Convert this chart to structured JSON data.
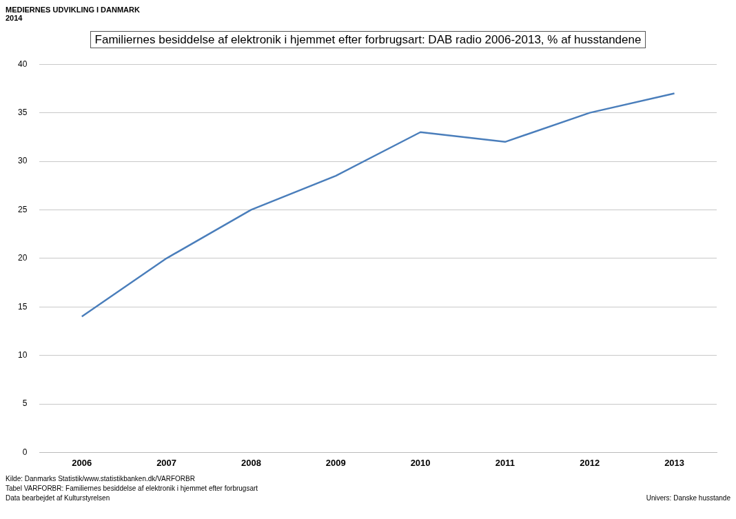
{
  "chart_data": {
    "type": "line",
    "title": "Familiernes besiddelse af elektronik i hjemmet efter forbrugsart: DAB radio 2006-2013, % af husstandene",
    "categories": [
      "2006",
      "2007",
      "2008",
      "2009",
      "2010",
      "2011",
      "2012",
      "2013"
    ],
    "series": [
      {
        "color": "#4a7ebb",
        "values": [
          14,
          20,
          25,
          28.5,
          33,
          32,
          35,
          37
        ]
      }
    ],
    "ylim": [
      0,
      40
    ],
    "yticks": [
      0,
      5,
      10,
      15,
      20,
      25,
      30,
      35,
      40
    ],
    "grid": "y",
    "legend": false,
    "marker": "none",
    "line_style": "solid",
    "annotations": [
      "MEDIERNES UDVIKLING I DANMARK 2014",
      "Kilde: Danmarks Statistik/www.statistikbanken.dk/VARFORBR",
      "Tabel VARFORBR: Familiernes besiddelse af elektronik i hjemmet efter forbrugsart",
      "Data bearbejdet af Kulturstyrelsen",
      "Univers: Danske husstande"
    ]
  }
}
